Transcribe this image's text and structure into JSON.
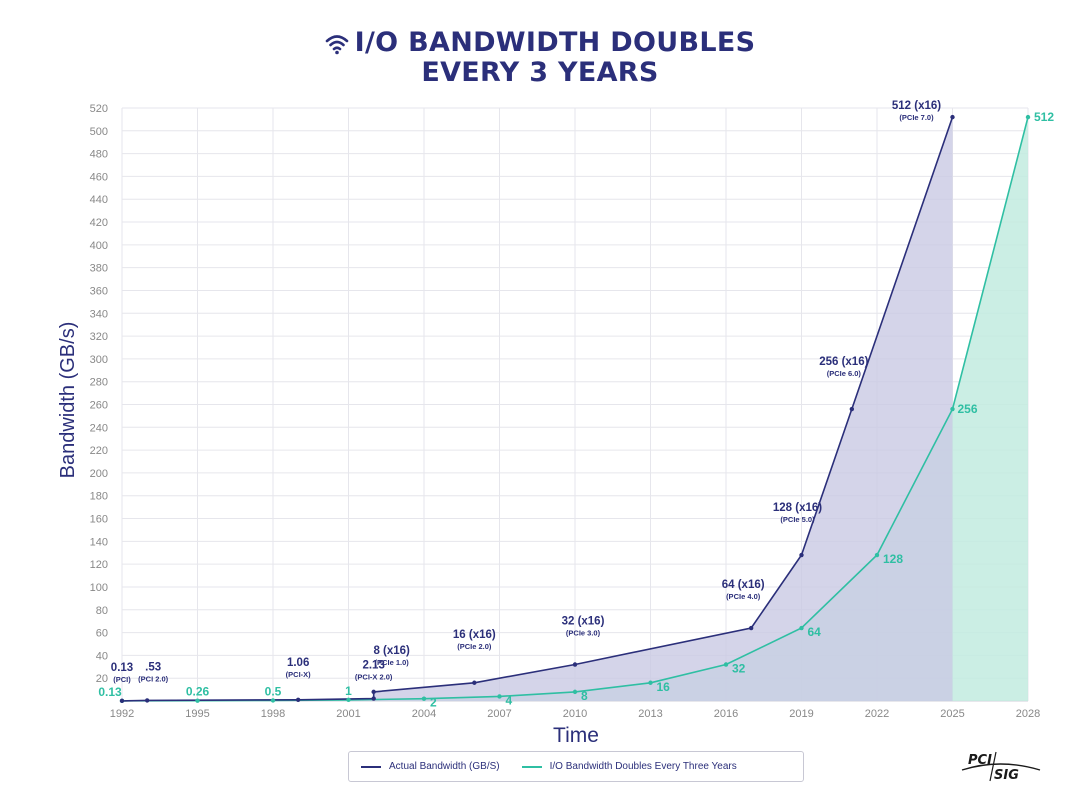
{
  "header": {
    "title_line1": "I/O BANDWIDTH DOUBLES",
    "title_line2": "EVERY 3 YEARS",
    "icon": "wifi-signal-icon"
  },
  "logo": {
    "text_top": "PCI",
    "text_bottom": "SIG"
  },
  "colors": {
    "actual": "#2b2f7a",
    "actual_fill": "#c9c9e3",
    "projected": "#2fbfa3",
    "projected_fill": "#c2ebdf",
    "grid": "#e6e6ec",
    "axis_text": "#888888"
  },
  "chart_data": {
    "type": "area",
    "ylabel": "Bandwidth (GB/s)",
    "xlabel": "Time",
    "xlim": [
      1992,
      2028
    ],
    "ylim": [
      0,
      520
    ],
    "x_ticks": [
      "1992",
      "1995",
      "1998",
      "2001",
      "2004",
      "2007",
      "2010",
      "2013",
      "2016",
      "2019",
      "2022",
      "2025",
      "2028"
    ],
    "y_ticks": [
      20,
      40,
      60,
      80,
      100,
      120,
      140,
      160,
      180,
      200,
      220,
      240,
      260,
      280,
      300,
      320,
      340,
      360,
      380,
      400,
      420,
      440,
      460,
      480,
      500,
      520
    ],
    "series": [
      {
        "name": "Actual Bandwidth (GB/S)",
        "points": [
          {
            "x": 1992,
            "y": 0.13,
            "label": "0.13",
            "sub": "(PCI)"
          },
          {
            "x": 1993,
            "y": 0.53,
            "label": ".53",
            "sub": "(PCI 2.0)"
          },
          {
            "x": 1999,
            "y": 1.06,
            "label": "1.06",
            "sub": "(PCI-X)"
          },
          {
            "x": 2002,
            "y": 2.13,
            "label": "2.13",
            "sub": "(PCI-X 2.0)"
          },
          {
            "x": 2002,
            "y": 8,
            "label": "8 (x16)",
            "sub": "(PCIe 1.0)"
          },
          {
            "x": 2006,
            "y": 16,
            "label": "16 (x16)",
            "sub": "(PCIe 2.0)"
          },
          {
            "x": 2010,
            "y": 32,
            "label": "32 (x16)",
            "sub": "(PCIe 3.0)"
          },
          {
            "x": 2017,
            "y": 64,
            "label": "64 (x16)",
            "sub": "(PCIe 4.0)"
          },
          {
            "x": 2019,
            "y": 128,
            "label": "128 (x16)",
            "sub": "(PCIe 5.0)"
          },
          {
            "x": 2021,
            "y": 256,
            "label": "256 (x16)",
            "sub": "(PCIe 6.0)"
          },
          {
            "x": 2025,
            "y": 512,
            "label": "512 (x16)",
            "sub": "(PCIe 7.0)"
          }
        ]
      },
      {
        "name": "I/O Bandwidth Doubles Every Three Years",
        "points": [
          {
            "x": 1992,
            "y": 0.13,
            "label": "0.13"
          },
          {
            "x": 1995,
            "y": 0.26,
            "label": "0.26"
          },
          {
            "x": 1998,
            "y": 0.5,
            "label": "0.5"
          },
          {
            "x": 2001,
            "y": 1,
            "label": "1"
          },
          {
            "x": 2004,
            "y": 2,
            "label": "2"
          },
          {
            "x": 2007,
            "y": 4,
            "label": "4"
          },
          {
            "x": 2010,
            "y": 8,
            "label": "8"
          },
          {
            "x": 2013,
            "y": 16,
            "label": "16"
          },
          {
            "x": 2016,
            "y": 32,
            "label": "32"
          },
          {
            "x": 2019,
            "y": 64,
            "label": "64"
          },
          {
            "x": 2022,
            "y": 128,
            "label": "128"
          },
          {
            "x": 2025,
            "y": 256,
            "label": "256"
          },
          {
            "x": 2028,
            "y": 512,
            "label": "512"
          }
        ]
      }
    ],
    "legend": {
      "position": "bottom-center",
      "items": [
        "Actual Bandwidth (GB/S)",
        "I/O Bandwidth Doubles Every Three Years"
      ]
    }
  }
}
